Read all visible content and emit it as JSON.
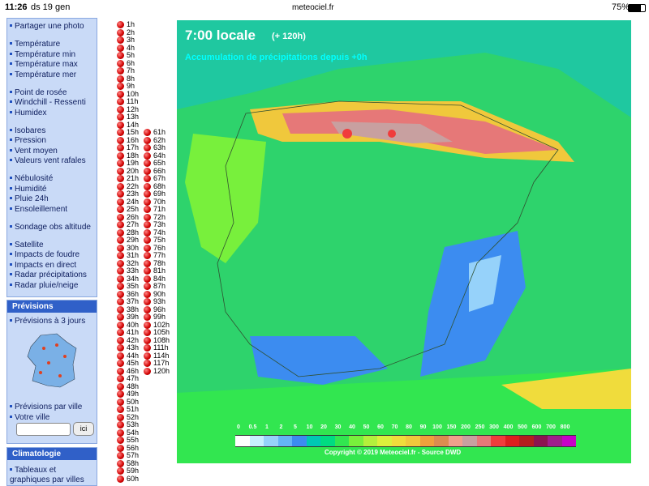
{
  "status_bar": {
    "time": "11:26",
    "date": "ds 19 gen",
    "url": "meteociel.fr",
    "battery": "75%"
  },
  "sidebar": {
    "groups": [
      [
        "Partager une photo"
      ],
      [
        "Température",
        "Température min",
        "Température max",
        "Température mer"
      ],
      [
        "Point de rosée",
        "Windchill - Ressenti",
        "Humidex"
      ],
      [
        "Isobares",
        "Pression",
        "Vent moyen",
        "Valeurs vent rafales"
      ],
      [
        "Nébulosité",
        "Humidité",
        "Pluie 24h",
        "Ensoleillement"
      ],
      [
        "Sondage obs altitude"
      ],
      [
        "Satellite",
        "Impacts de foudre",
        "Impacts en direct",
        "Radar précipitations",
        "Radar pluie/neige"
      ]
    ],
    "previsions": {
      "title": "Prévisions",
      "items": [
        "Prévisions à 3 jours"
      ],
      "city_items": [
        "Prévisions par ville",
        "Votre ville"
      ],
      "button": "ici"
    },
    "climatologie": {
      "title": "Climatologie",
      "items": [
        "Tableaux et graphiques par villes"
      ]
    }
  },
  "hours": {
    "column1": [
      "1h",
      "2h",
      "3h",
      "4h",
      "5h",
      "6h",
      "7h",
      "8h",
      "9h",
      "10h",
      "11h",
      "12h",
      "13h",
      "14h",
      "15h",
      "16h",
      "17h",
      "18h",
      "19h",
      "20h",
      "21h",
      "22h",
      "23h",
      "24h",
      "25h",
      "26h",
      "27h",
      "28h",
      "29h",
      "30h",
      "31h",
      "32h",
      "33h",
      "34h",
      "35h",
      "36h",
      "37h",
      "38h",
      "39h",
      "40h",
      "41h",
      "42h",
      "43h",
      "44h",
      "45h",
      "46h",
      "47h",
      "48h",
      "49h",
      "50h",
      "51h",
      "52h",
      "53h",
      "54h",
      "55h",
      "56h",
      "57h",
      "58h",
      "59h",
      "60h"
    ],
    "column2": [
      "61h",
      "62h",
      "63h",
      "64h",
      "65h",
      "66h",
      "67h",
      "68h",
      "69h",
      "70h",
      "71h",
      "72h",
      "73h",
      "74h",
      "75h",
      "76h",
      "77h",
      "78h",
      "81h",
      "84h",
      "87h",
      "90h",
      "93h",
      "96h",
      "99h",
      "102h",
      "105h",
      "108h",
      "111h",
      "114h",
      "117h",
      "120h"
    ]
  },
  "map": {
    "time": "7:00 locale",
    "lead": "(+ 120h)",
    "subtitle": "Accumulation de précipitations depuis +0h",
    "legend": {
      "labels": [
        "0",
        "0.5",
        "1",
        "2",
        "5",
        "10",
        "20",
        "30",
        "40",
        "50",
        "60",
        "70",
        "80",
        "90",
        "100",
        "150",
        "200",
        "250",
        "300",
        "400",
        "500",
        "600",
        "700",
        "800"
      ],
      "colors": [
        "#ffffff",
        "#c8f0ff",
        "#96d2fa",
        "#64b4f5",
        "#3c8cf0",
        "#00c8b4",
        "#00dc82",
        "#32e650",
        "#78f03c",
        "#b4f03c",
        "#dcf03c",
        "#f0dc3c",
        "#f0c83c",
        "#f0a03c",
        "#dc8c50",
        "#f0a08c",
        "#c8a0a0",
        "#e67878",
        "#f03c3c",
        "#dc1e1e",
        "#b41e1e",
        "#8c1450",
        "#a01e8c",
        "#c800c8"
      ]
    },
    "copyright": "Copyright © 2019 Meteociel.fr - Source DWD"
  }
}
